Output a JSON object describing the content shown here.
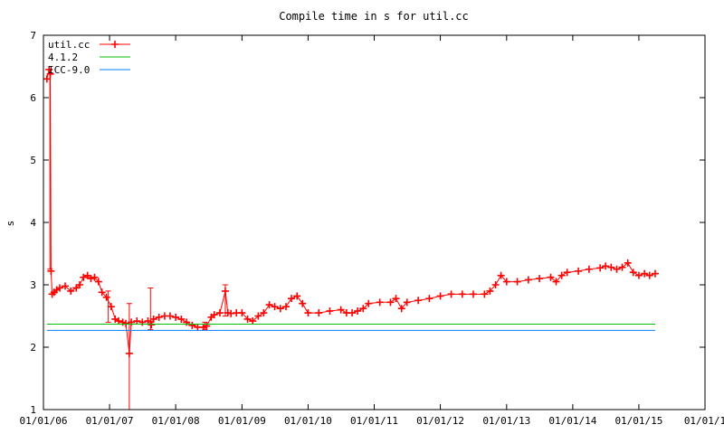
{
  "chart_data": {
    "type": "line",
    "title": "Compile time in s for util.cc",
    "xlabel": "",
    "ylabel": "s",
    "x_scale": "date",
    "xlim": [
      "2006-01-01",
      "2016-01-01"
    ],
    "ylim": [
      1,
      7
    ],
    "x_ticks": [
      "01/01/06",
      "01/01/07",
      "01/01/08",
      "01/01/09",
      "01/01/10",
      "01/01/11",
      "01/01/12",
      "01/01/13",
      "01/01/14",
      "01/01/15",
      "01/01/1"
    ],
    "x_tick_dates": [
      "2006-01-01",
      "2007-01-01",
      "2008-01-01",
      "2009-01-01",
      "2010-01-01",
      "2011-01-01",
      "2012-01-01",
      "2013-01-01",
      "2014-01-01",
      "2015-01-01",
      "2016-01-01"
    ],
    "y_ticks": [
      "1",
      "2",
      "3",
      "4",
      "5",
      "6",
      "7"
    ],
    "grid": false,
    "legend_position": "top-left",
    "series": [
      {
        "name": "util.cc",
        "color": "#ff0000",
        "marker": "plus",
        "points": [
          [
            "2006-01-20",
            6.3
          ],
          [
            "2006-02-01",
            6.45
          ],
          [
            "2006-02-08",
            6.38
          ],
          [
            "2006-02-12",
            3.22
          ],
          [
            "2006-02-18",
            2.85
          ],
          [
            "2006-03-01",
            2.88
          ],
          [
            "2006-03-15",
            2.92
          ],
          [
            "2006-04-01",
            2.95
          ],
          [
            "2006-05-01",
            2.98
          ],
          [
            "2006-06-01",
            2.9
          ],
          [
            "2006-07-01",
            2.95
          ],
          [
            "2006-07-20",
            3.0
          ],
          [
            "2006-08-10",
            3.12
          ],
          [
            "2006-09-01",
            3.15
          ],
          [
            "2006-09-20",
            3.1
          ],
          [
            "2006-10-10",
            3.12
          ],
          [
            "2006-11-01",
            3.05
          ],
          [
            "2006-11-20",
            2.88
          ],
          [
            "2006-12-15",
            2.8
          ],
          [
            "2007-01-10",
            2.65
          ],
          [
            "2007-02-01",
            2.45
          ],
          [
            "2007-02-20",
            2.42
          ],
          [
            "2007-03-15",
            2.4
          ],
          [
            "2007-04-01",
            2.38
          ],
          [
            "2007-04-20",
            1.9
          ],
          [
            "2007-05-01",
            2.4
          ],
          [
            "2007-06-01",
            2.42
          ],
          [
            "2007-07-01",
            2.4
          ],
          [
            "2007-08-01",
            2.42
          ],
          [
            "2007-08-20",
            2.36
          ],
          [
            "2007-09-01",
            2.45
          ],
          [
            "2007-10-01",
            2.48
          ],
          [
            "2007-11-01",
            2.5
          ],
          [
            "2007-12-01",
            2.5
          ],
          [
            "2008-01-01",
            2.48
          ],
          [
            "2008-02-01",
            2.45
          ],
          [
            "2008-03-01",
            2.4
          ],
          [
            "2008-04-01",
            2.35
          ],
          [
            "2008-05-01",
            2.32
          ],
          [
            "2008-06-01",
            2.32
          ],
          [
            "2008-06-20",
            2.34
          ],
          [
            "2008-07-15",
            2.48
          ],
          [
            "2008-08-01",
            2.52
          ],
          [
            "2008-09-01",
            2.55
          ],
          [
            "2008-10-01",
            2.9
          ],
          [
            "2008-10-15",
            2.55
          ],
          [
            "2008-11-01",
            2.54
          ],
          [
            "2008-12-01",
            2.55
          ],
          [
            "2009-01-01",
            2.55
          ],
          [
            "2009-02-01",
            2.45
          ],
          [
            "2009-03-01",
            2.42
          ],
          [
            "2009-04-01",
            2.5
          ],
          [
            "2009-05-01",
            2.55
          ],
          [
            "2009-06-01",
            2.68
          ],
          [
            "2009-07-01",
            2.65
          ],
          [
            "2009-08-01",
            2.62
          ],
          [
            "2009-09-01",
            2.65
          ],
          [
            "2009-10-01",
            2.78
          ],
          [
            "2009-11-01",
            2.82
          ],
          [
            "2009-12-01",
            2.7
          ],
          [
            "2010-01-01",
            2.55
          ],
          [
            "2010-03-01",
            2.55
          ],
          [
            "2010-05-01",
            2.58
          ],
          [
            "2010-07-01",
            2.6
          ],
          [
            "2010-08-01",
            2.55
          ],
          [
            "2010-09-01",
            2.55
          ],
          [
            "2010-10-01",
            2.58
          ],
          [
            "2010-11-01",
            2.62
          ],
          [
            "2010-12-01",
            2.7
          ],
          [
            "2011-02-01",
            2.72
          ],
          [
            "2011-04-01",
            2.72
          ],
          [
            "2011-05-01",
            2.78
          ],
          [
            "2011-06-01",
            2.62
          ],
          [
            "2011-07-01",
            2.72
          ],
          [
            "2011-09-01",
            2.75
          ],
          [
            "2011-11-01",
            2.78
          ],
          [
            "2012-01-01",
            2.82
          ],
          [
            "2012-03-01",
            2.85
          ],
          [
            "2012-05-01",
            2.85
          ],
          [
            "2012-07-01",
            2.85
          ],
          [
            "2012-09-01",
            2.85
          ],
          [
            "2012-10-01",
            2.9
          ],
          [
            "2012-11-01",
            3.0
          ],
          [
            "2012-12-01",
            3.15
          ],
          [
            "2013-01-01",
            3.05
          ],
          [
            "2013-03-01",
            3.05
          ],
          [
            "2013-05-01",
            3.08
          ],
          [
            "2013-07-01",
            3.1
          ],
          [
            "2013-09-01",
            3.12
          ],
          [
            "2013-10-01",
            3.05
          ],
          [
            "2013-11-01",
            3.15
          ],
          [
            "2013-12-01",
            3.2
          ],
          [
            "2014-02-01",
            3.22
          ],
          [
            "2014-04-01",
            3.25
          ],
          [
            "2014-06-01",
            3.27
          ],
          [
            "2014-07-01",
            3.3
          ],
          [
            "2014-08-01",
            3.28
          ],
          [
            "2014-09-01",
            3.25
          ],
          [
            "2014-10-01",
            3.28
          ],
          [
            "2014-11-01",
            3.35
          ],
          [
            "2014-12-01",
            3.2
          ],
          [
            "2015-01-01",
            3.15
          ],
          [
            "2015-02-01",
            3.18
          ],
          [
            "2015-03-01",
            3.15
          ],
          [
            "2015-04-01",
            3.18
          ]
        ],
        "error_bars": [
          {
            "x": "2006-02-06",
            "low": 3.25,
            "high": 6.45
          },
          {
            "x": "2006-12-25",
            "low": 2.4,
            "high": 2.9
          },
          {
            "x": "2007-04-20",
            "low": 1.0,
            "high": 2.7
          },
          {
            "x": "2007-08-15",
            "low": 2.28,
            "high": 2.95
          },
          {
            "x": "2008-06-10",
            "low": 2.28,
            "high": 2.4
          },
          {
            "x": "2008-10-01",
            "low": 2.5,
            "high": 3.0
          }
        ]
      },
      {
        "name": "4.1.2",
        "color": "#00c000",
        "marker": "none",
        "points": [
          [
            "2006-01-20",
            2.37
          ],
          [
            "2015-04-01",
            2.37
          ]
        ]
      },
      {
        "name": "ICC-9.0",
        "color": "#0080ff",
        "marker": "none",
        "points": [
          [
            "2006-01-20",
            2.27
          ],
          [
            "2015-04-01",
            2.27
          ]
        ]
      }
    ]
  }
}
